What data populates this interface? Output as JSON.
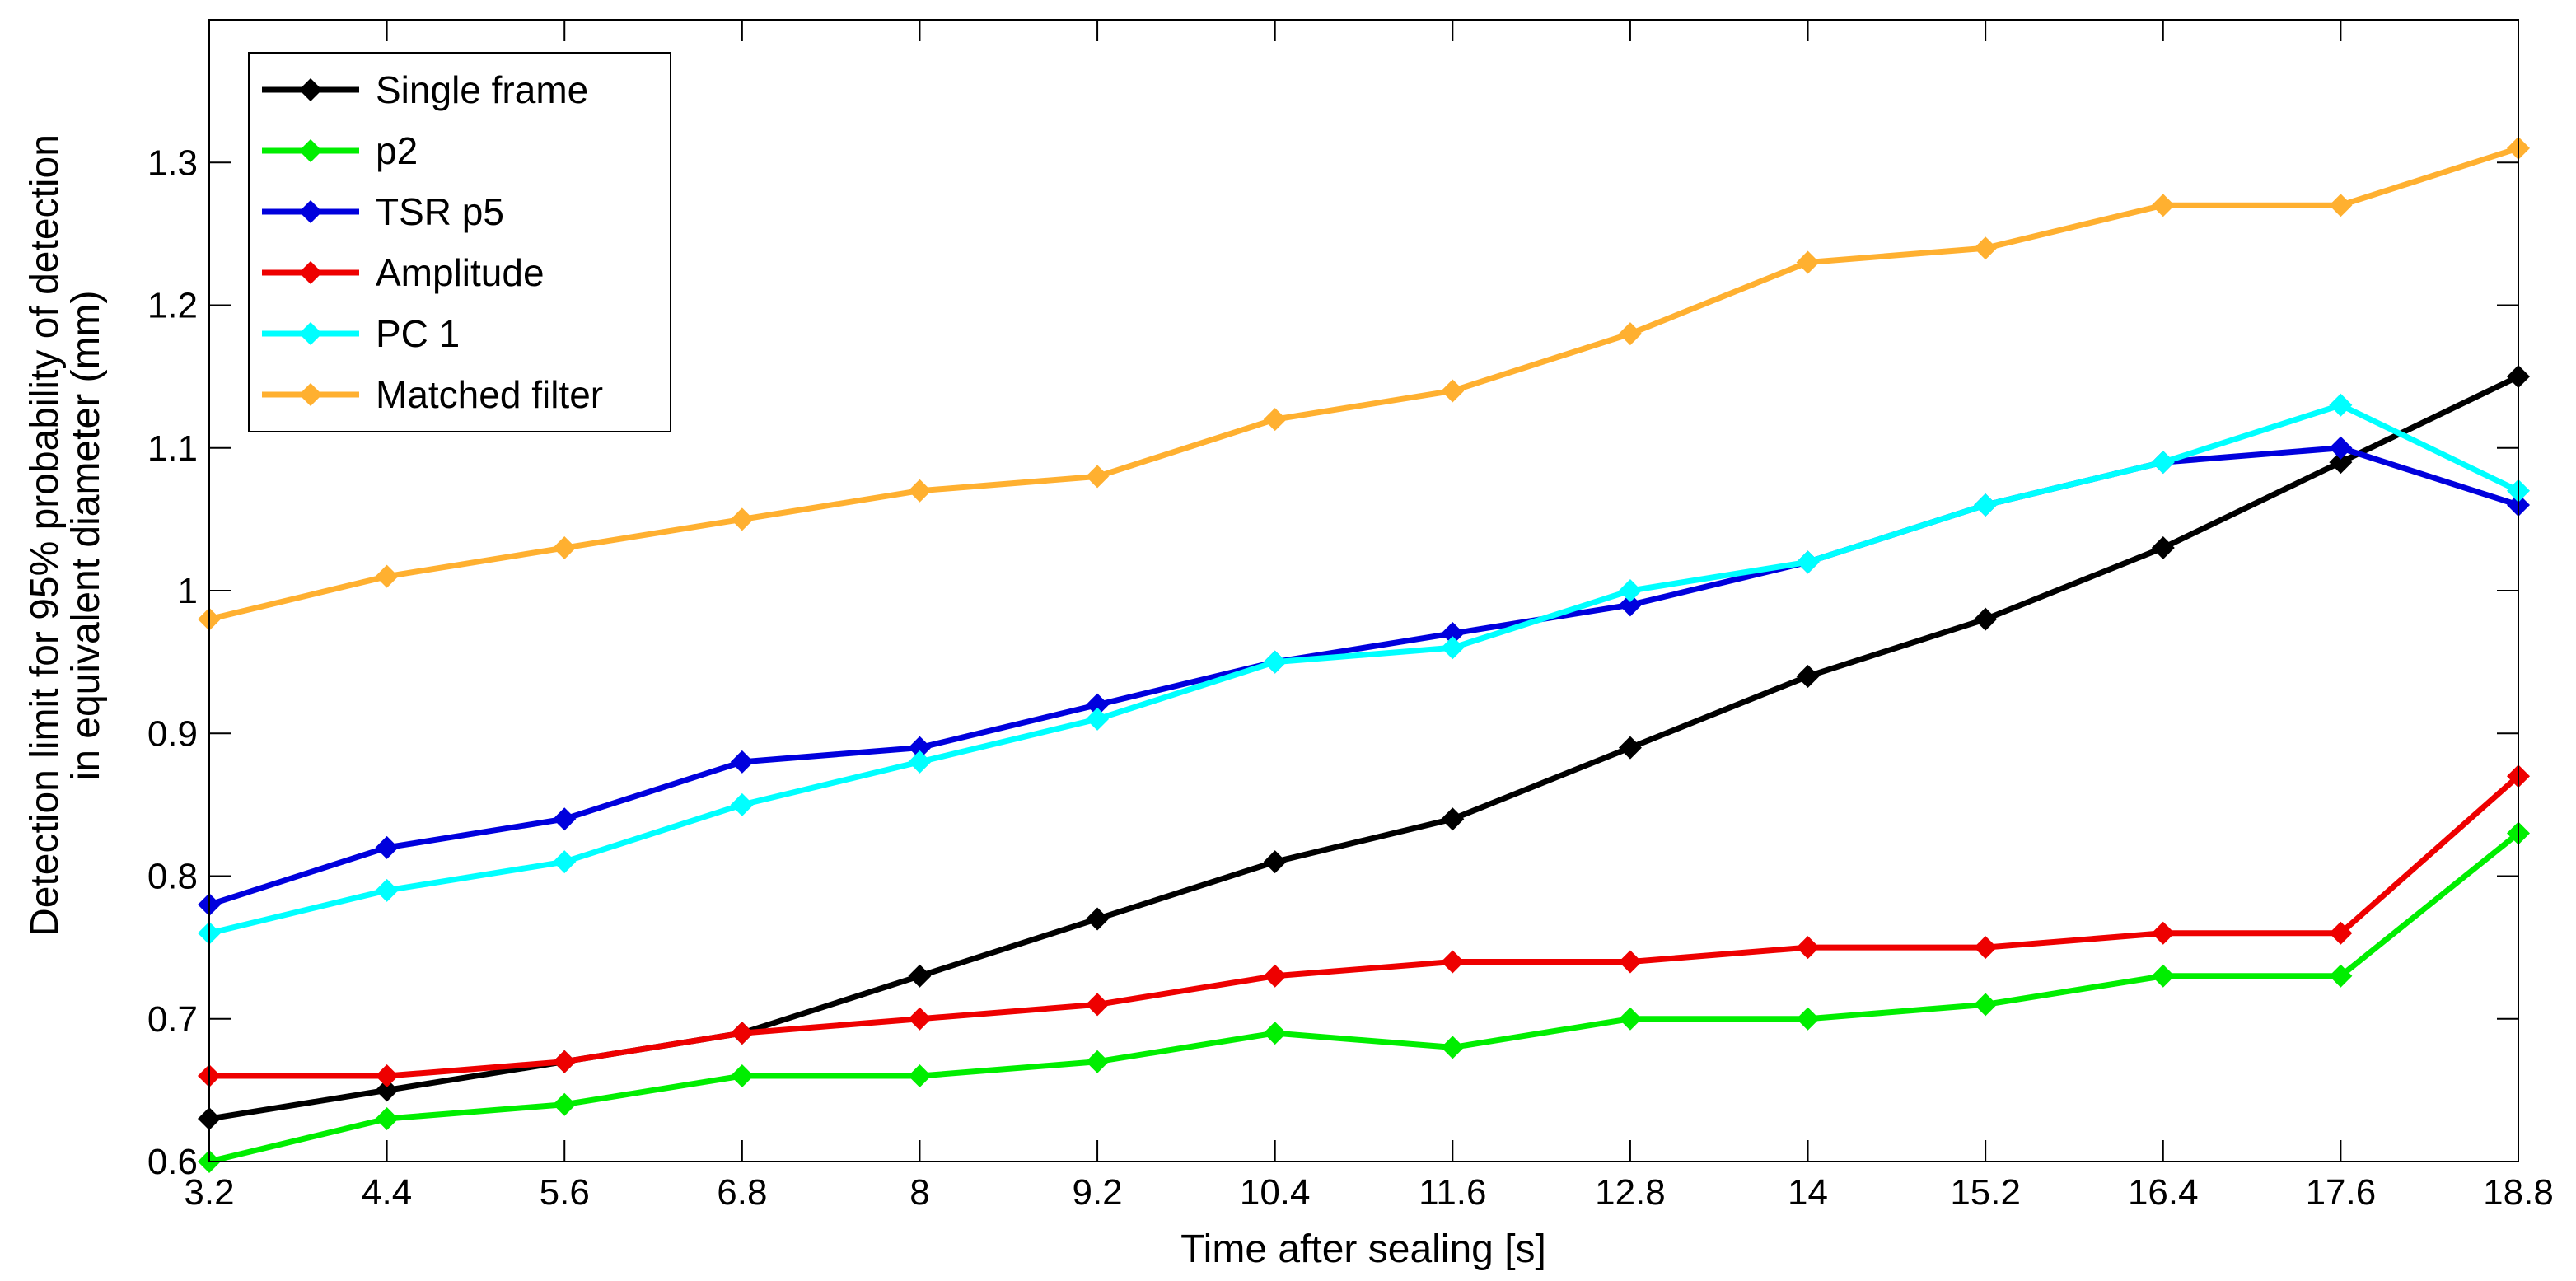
{
  "chart_data": {
    "type": "line",
    "title": "",
    "xlabel": "Time after sealing [s]",
    "ylabel_lines": [
      "Detection limit for 95% probability of detection",
      "in equivalent diameter (mm)"
    ],
    "x": [
      3.2,
      4.4,
      5.6,
      6.8,
      8,
      9.2,
      10.4,
      11.6,
      12.8,
      14,
      15.2,
      16.4,
      17.6,
      18.8
    ],
    "xtick_labels": [
      "3.2",
      "4.4",
      "5.6",
      "6.8",
      "8",
      "9.2",
      "10.4",
      "11.6",
      "12.8",
      "14",
      "15.2",
      "16.4",
      "17.6",
      "18.8"
    ],
    "xlim": [
      3.2,
      18.8
    ],
    "ylim": [
      0.6,
      1.4
    ],
    "yticks": [
      0.6,
      0.7,
      0.8,
      0.9,
      1.0,
      1.1,
      1.2,
      1.3
    ],
    "ytick_labels": [
      "0.6",
      "0.7",
      "0.8",
      "0.9",
      "1",
      "1.1",
      "1.2",
      "1.3"
    ],
    "grid": false,
    "legend_position": "top-left",
    "marker": "diamond",
    "series": [
      {
        "name": "Single frame",
        "color": "#000000",
        "values": [
          0.63,
          0.65,
          0.67,
          0.69,
          0.73,
          0.77,
          0.81,
          0.84,
          0.89,
          0.94,
          0.98,
          1.03,
          1.09,
          1.15
        ]
      },
      {
        "name": "p2",
        "color": "#00ee00",
        "values": [
          0.6,
          0.63,
          0.64,
          0.66,
          0.66,
          0.67,
          0.69,
          0.68,
          0.7,
          0.7,
          0.71,
          0.73,
          0.73,
          0.83
        ]
      },
      {
        "name": "TSR p5",
        "color": "#0000dd",
        "values": [
          0.78,
          0.82,
          0.84,
          0.88,
          0.89,
          0.92,
          0.95,
          0.97,
          0.99,
          1.02,
          1.06,
          1.09,
          1.1,
          1.06
        ]
      },
      {
        "name": "Amplitude",
        "color": "#ee0000",
        "values": [
          0.66,
          0.66,
          0.67,
          0.69,
          0.7,
          0.71,
          0.73,
          0.74,
          0.74,
          0.75,
          0.75,
          0.76,
          0.76,
          0.87
        ]
      },
      {
        "name": "PC 1",
        "color": "#00ffff",
        "values": [
          0.76,
          0.79,
          0.81,
          0.85,
          0.88,
          0.91,
          0.95,
          0.96,
          1.0,
          1.02,
          1.06,
          1.09,
          1.13,
          1.07
        ]
      },
      {
        "name": "Matched filter",
        "color": "#ffb030",
        "values": [
          0.98,
          1.01,
          1.03,
          1.05,
          1.07,
          1.08,
          1.12,
          1.14,
          1.18,
          1.23,
          1.24,
          1.27,
          1.27,
          1.31
        ]
      }
    ]
  }
}
